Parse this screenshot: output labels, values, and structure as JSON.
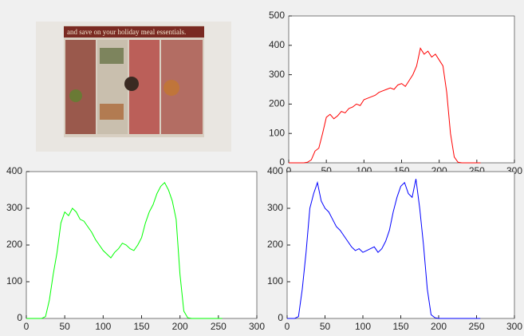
{
  "image": {
    "caption": "and save on your holiday meal essentials."
  },
  "chart_data": [
    {
      "type": "line",
      "series": [
        {
          "color": "#ff0000",
          "x": [
            0,
            5,
            10,
            15,
            20,
            25,
            30,
            35,
            40,
            45,
            50,
            55,
            60,
            65,
            70,
            75,
            80,
            85,
            90,
            95,
            100,
            105,
            110,
            115,
            120,
            125,
            130,
            135,
            140,
            145,
            150,
            155,
            160,
            165,
            170,
            175,
            180,
            185,
            190,
            195,
            200,
            205,
            210,
            215,
            220,
            225,
            230,
            235,
            240,
            245,
            250,
            255
          ],
          "values": [
            0,
            0,
            0,
            0,
            0,
            2,
            10,
            40,
            50,
            100,
            155,
            165,
            150,
            160,
            175,
            170,
            185,
            190,
            200,
            195,
            215,
            220,
            225,
            230,
            240,
            245,
            250,
            255,
            250,
            265,
            270,
            260,
            280,
            300,
            330,
            390,
            370,
            380,
            360,
            370,
            350,
            330,
            240,
            100,
            20,
            2,
            0,
            0,
            0,
            0,
            0,
            0
          ]
        }
      ],
      "xlim": [
        0,
        300
      ],
      "xticks": [
        0,
        50,
        100,
        150,
        200,
        250,
        300
      ],
      "ylim": [
        0,
        500
      ],
      "yticks": [
        0,
        100,
        200,
        300,
        400,
        500
      ]
    },
    {
      "type": "line",
      "series": [
        {
          "color": "#00ff00",
          "x": [
            0,
            5,
            10,
            15,
            20,
            25,
            30,
            35,
            40,
            45,
            50,
            55,
            60,
            65,
            70,
            75,
            80,
            85,
            90,
            95,
            100,
            105,
            110,
            115,
            120,
            125,
            130,
            135,
            140,
            145,
            150,
            155,
            160,
            165,
            170,
            175,
            180,
            185,
            190,
            195,
            200,
            205,
            210,
            215,
            220,
            225,
            230,
            235,
            240,
            245,
            250,
            255
          ],
          "values": [
            0,
            0,
            0,
            0,
            0,
            5,
            50,
            120,
            180,
            260,
            290,
            280,
            300,
            290,
            270,
            265,
            250,
            235,
            215,
            200,
            185,
            175,
            165,
            180,
            190,
            205,
            200,
            190,
            185,
            200,
            220,
            260,
            290,
            310,
            340,
            360,
            370,
            350,
            320,
            270,
            120,
            20,
            2,
            0,
            0,
            0,
            0,
            0,
            0,
            0,
            0,
            0
          ]
        }
      ],
      "xlim": [
        0,
        300
      ],
      "xticks": [
        0,
        50,
        100,
        150,
        200,
        250,
        300
      ],
      "ylim": [
        0,
        400
      ],
      "yticks": [
        0,
        100,
        200,
        300,
        400
      ]
    },
    {
      "type": "line",
      "series": [
        {
          "color": "#0000ff",
          "x": [
            0,
            5,
            10,
            15,
            20,
            25,
            30,
            35,
            40,
            45,
            50,
            55,
            60,
            65,
            70,
            75,
            80,
            85,
            90,
            95,
            100,
            105,
            110,
            115,
            120,
            125,
            130,
            135,
            140,
            145,
            150,
            155,
            160,
            165,
            170,
            175,
            180,
            185,
            190,
            195,
            200,
            205,
            210,
            215,
            220,
            225,
            230,
            235,
            240,
            245,
            250,
            255
          ],
          "values": [
            0,
            0,
            0,
            5,
            80,
            180,
            300,
            340,
            370,
            320,
            300,
            290,
            270,
            250,
            240,
            225,
            210,
            195,
            185,
            190,
            180,
            185,
            190,
            195,
            180,
            190,
            210,
            240,
            290,
            330,
            360,
            370,
            340,
            330,
            380,
            300,
            200,
            80,
            10,
            2,
            0,
            0,
            0,
            0,
            0,
            0,
            0,
            0,
            0,
            0,
            0,
            0
          ]
        }
      ],
      "xlim": [
        0,
        300
      ],
      "xticks": [
        0,
        50,
        100,
        150,
        200,
        250,
        300
      ],
      "ylim": [
        0,
        400
      ],
      "yticks": [
        0,
        100,
        200,
        300,
        400
      ]
    }
  ]
}
